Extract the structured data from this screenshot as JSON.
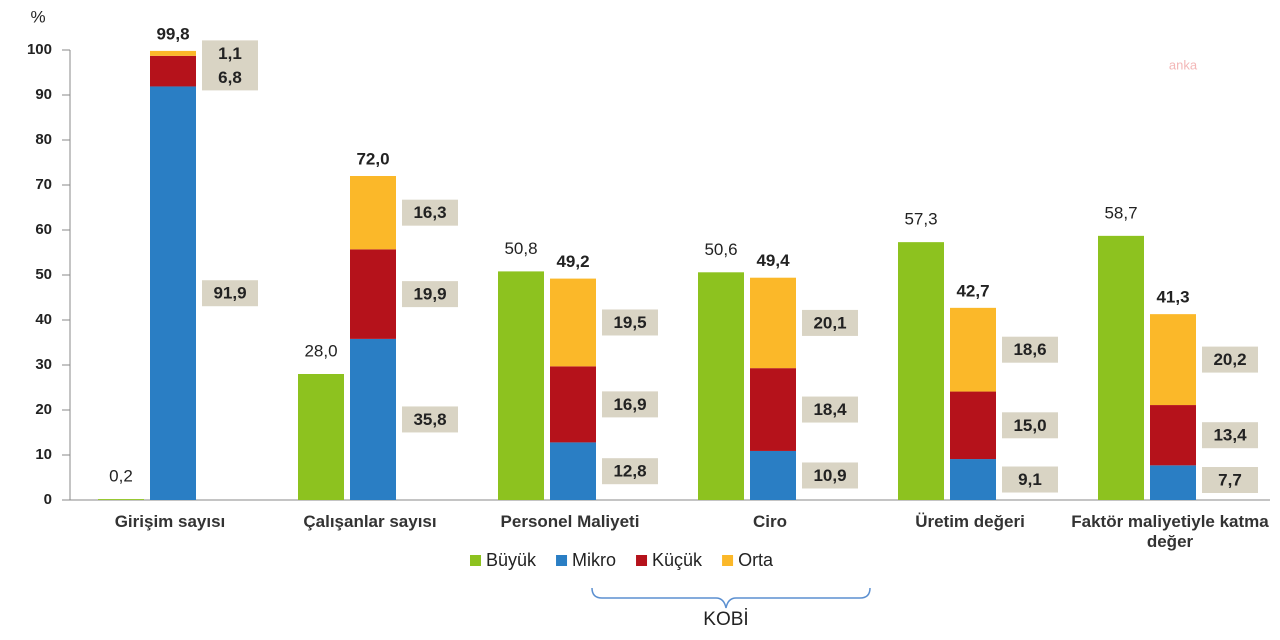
{
  "chart_data": {
    "type": "stacked_bar",
    "y_label": "%",
    "watermark": "anka",
    "group_label": "KOBİ",
    "categories": [
      "Girişim sayısı",
      "Çalışanlar sayısı",
      "Personel Maliyeti",
      "Ciro",
      "Üretim değeri",
      "Faktör maliyetiyle katma değer"
    ],
    "ylim": [
      0,
      100
    ],
    "yticks": [
      0,
      10,
      20,
      30,
      40,
      50,
      60,
      70,
      80,
      90,
      100
    ],
    "series": [
      {
        "name": "Büyük",
        "color": "#8dc21f",
        "stack": "single",
        "values": [
          0.2,
          28.0,
          50.8,
          50.6,
          57.3,
          58.7
        ],
        "value_labels": [
          "0,2",
          "28,0",
          "50,8",
          "50,6",
          "57,3",
          "58,7"
        ]
      },
      {
        "name": "Mikro",
        "color": "#2a7ec4",
        "stack": "kobi",
        "values": [
          91.9,
          35.8,
          12.8,
          10.9,
          9.1,
          7.7
        ],
        "value_labels": [
          "91,9",
          "35,8",
          "12,8",
          "10,9",
          "9,1",
          "7,7"
        ]
      },
      {
        "name": "Küçük",
        "color": "#b5121b",
        "stack": "kobi",
        "values": [
          6.8,
          19.9,
          16.9,
          18.4,
          15.0,
          13.4
        ],
        "value_labels": [
          "6,8",
          "19,9",
          "16,9",
          "18,4",
          "15,0",
          "13,4"
        ]
      },
      {
        "name": "Orta",
        "color": "#fbb829",
        "stack": "kobi",
        "values": [
          1.1,
          16.3,
          19.5,
          20.1,
          18.6,
          20.2
        ],
        "value_labels": [
          "1,1",
          "16,3",
          "19,5",
          "20,1",
          "18,6",
          "20,2"
        ]
      }
    ],
    "kobi_totals": {
      "values": [
        99.8,
        72.0,
        49.2,
        49.4,
        42.7,
        41.3
      ],
      "value_labels": [
        "99,8",
        "72,0",
        "49,2",
        "49,4",
        "42,7",
        "41,3"
      ]
    },
    "label_box_color": "#d9d4c4"
  }
}
